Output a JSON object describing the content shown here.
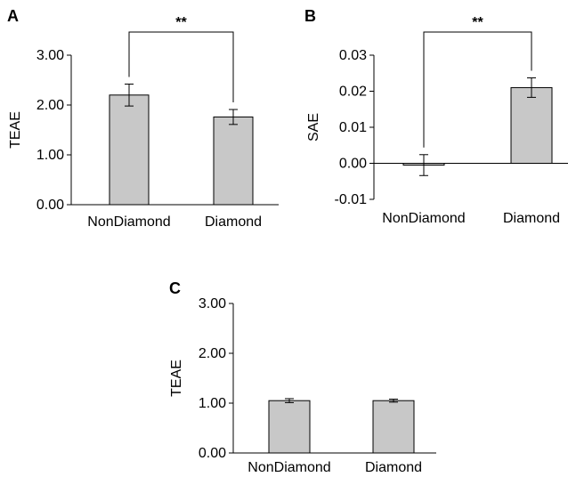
{
  "chart_data": [
    {
      "panel": "A",
      "type": "bar",
      "categories": [
        "NonDiamond",
        "Diamond"
      ],
      "values": [
        2.2,
        1.76
      ],
      "errors": [
        0.22,
        0.15
      ],
      "ylabel": "TEAE",
      "ylim": [
        0,
        3
      ],
      "yticks": [
        "0.00",
        "1.00",
        "2.00",
        "3.00"
      ],
      "significance": "**",
      "bar_color": "#c8c8c8"
    },
    {
      "panel": "B",
      "type": "bar",
      "categories": [
        "NonDiamond",
        "Diamond"
      ],
      "values": [
        -0.0005,
        0.021
      ],
      "errors": [
        0.0029,
        0.0027
      ],
      "ylabel": "SAE",
      "ylim": [
        -0.01,
        0.03
      ],
      "yticks": [
        "-0.01",
        "0.00",
        "0.01",
        "0.02",
        "0.03"
      ],
      "significance": "**",
      "bar_color": "#c8c8c8"
    },
    {
      "panel": "C",
      "type": "bar",
      "categories": [
        "NonDiamond",
        "Diamond"
      ],
      "values": [
        1.05,
        1.05
      ],
      "errors": [
        0.04,
        0.03
      ],
      "ylabel": "TEAE",
      "ylim": [
        0,
        3
      ],
      "yticks": [
        "0.00",
        "1.00",
        "2.00",
        "3.00"
      ],
      "significance": "",
      "bar_color": "#c8c8c8"
    }
  ]
}
